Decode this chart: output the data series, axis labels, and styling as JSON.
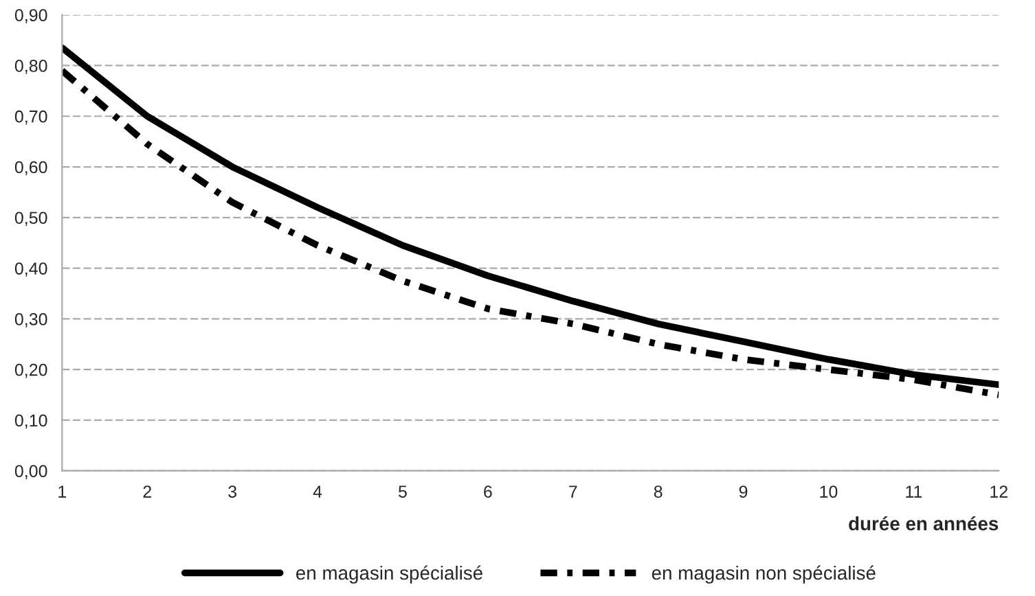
{
  "chart_data": {
    "type": "line",
    "xlabel": "durée en années",
    "x": [
      1,
      2,
      3,
      4,
      5,
      6,
      7,
      8,
      9,
      10,
      11,
      12
    ],
    "series": [
      {
        "name": "en magasin spécialisé",
        "color": "#000000",
        "line_style": "solid",
        "values": [
          0.835,
          0.7,
          0.6,
          0.52,
          0.445,
          0.385,
          0.335,
          0.29,
          0.255,
          0.22,
          0.19,
          0.17
        ]
      },
      {
        "name": "en magasin non spécialisé",
        "color": "#000000",
        "line_style": "dashed",
        "values": [
          0.79,
          0.645,
          0.53,
          0.445,
          0.375,
          0.32,
          0.29,
          0.25,
          0.22,
          0.2,
          0.18,
          0.15
        ]
      }
    ],
    "xlim": [
      1,
      12
    ],
    "xticks": [
      1,
      2,
      3,
      4,
      5,
      6,
      7,
      8,
      9,
      10,
      11,
      12
    ],
    "ylim": [
      0,
      0.9
    ],
    "yticks": [
      {
        "value": 0,
        "label": "0,00"
      },
      {
        "value": 0.1,
        "label": "0,10"
      },
      {
        "value": 0.2,
        "label": "0,20"
      },
      {
        "value": 0.3,
        "label": "0,30"
      },
      {
        "value": 0.4,
        "label": "0,40"
      },
      {
        "value": 0.5,
        "label": "0,50"
      },
      {
        "value": 0.6,
        "label": "0,60"
      },
      {
        "value": 0.7,
        "label": "0,70"
      },
      {
        "value": 0.8,
        "label": "0,80"
      },
      {
        "value": 0.9,
        "label": "0,90"
      }
    ],
    "grid": "y",
    "legend": "bottom",
    "marker": "none"
  }
}
